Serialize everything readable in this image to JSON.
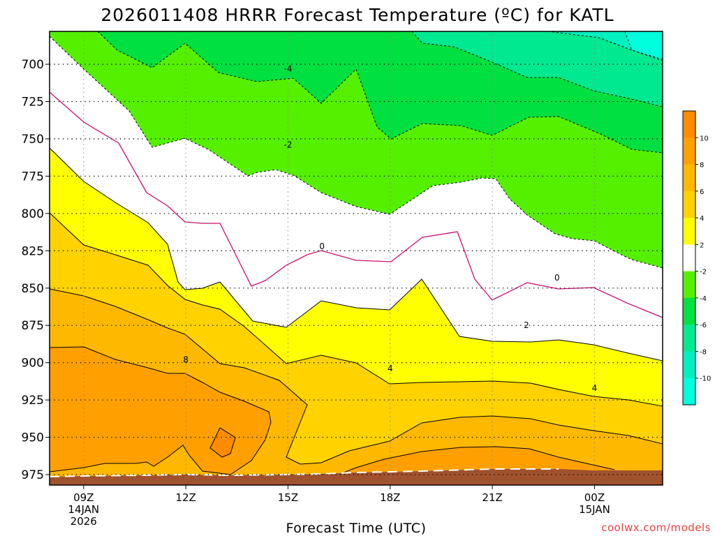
{
  "chart_data": {
    "type": "contour",
    "title": "2026011408 HRRR Forecast Temperature (ºC) for KATL",
    "xlabel": "Forecast Time (UTC)",
    "ylabel": "",
    "credit": "coolwx.com/models",
    "x_ticks": [
      {
        "hour": 9,
        "lines": [
          "09Z",
          "14JAN",
          "2026"
        ]
      },
      {
        "hour": 12,
        "lines": [
          "12Z"
        ]
      },
      {
        "hour": 15,
        "lines": [
          "15Z"
        ]
      },
      {
        "hour": 18,
        "lines": [
          "18Z"
        ]
      },
      {
        "hour": 21,
        "lines": [
          "21Z"
        ]
      },
      {
        "hour": 24,
        "lines": [
          "00Z",
          "15JAN"
        ]
      }
    ],
    "x_range_hours": [
      8,
      26
    ],
    "y_ticks": [
      700,
      725,
      750,
      775,
      800,
      825,
      850,
      875,
      900,
      925,
      950,
      975
    ],
    "y_range_hPa": [
      678,
      982
    ],
    "colorbar": {
      "ticks": [
        "10",
        "8",
        "6",
        "4",
        "2",
        "-2",
        "-4",
        "-6",
        "-8",
        "-10"
      ],
      "levels": [
        {
          "range": "10 to 12",
          "color": "#ff8c00"
        },
        {
          "range": "8 to 10",
          "color": "#ffa000"
        },
        {
          "range": "6 to 8",
          "color": "#ffb800"
        },
        {
          "range": "4 to 6",
          "color": "#ffd200"
        },
        {
          "range": "2 to 4",
          "color": "#ffff00"
        },
        {
          "range": "-2 to 2",
          "color": "#ffffff"
        },
        {
          "range": "-4 to -2",
          "color": "#55f000"
        },
        {
          "range": "-6 to -4",
          "color": "#00e040"
        },
        {
          "range": "-8 to -6",
          "color": "#00e990"
        },
        {
          "range": "-10 to -8",
          "color": "#00f0c0"
        },
        {
          "range": "-12 to -10",
          "color": "#00ffdd"
        }
      ]
    },
    "fills": [
      {
        "name": "fill-cold-2-4",
        "color": "#55f000"
      },
      {
        "name": "fill-cold-4-6",
        "color": "#00e040"
      },
      {
        "name": "fill-cold-6-8",
        "color": "#00e990"
      },
      {
        "name": "fill-cold-8-10",
        "color": "#00f0c0"
      },
      {
        "name": "fill-cold-10-12",
        "color": "#00ffdd"
      },
      {
        "name": "fill-warm-2-4",
        "color": "#ffff00"
      },
      {
        "name": "fill-warm-4-6",
        "color": "#ffd200"
      },
      {
        "name": "fill-warm-6-8",
        "color": "#ffb800"
      },
      {
        "name": "fill-warm-8-10",
        "color": "#ffa000"
      },
      {
        "name": "fill-warm-10-12",
        "color": "#ff8c00"
      }
    ],
    "contour_labels": [
      {
        "text": "-4",
        "hour": 15.0,
        "hPa": 703
      },
      {
        "text": "-2",
        "hour": 15.0,
        "hPa": 754
      },
      {
        "text": "0",
        "hour": 16.0,
        "hPa": 822
      },
      {
        "text": "0",
        "hour": 22.9,
        "hPa": 843
      },
      {
        "text": "2",
        "hour": 22.0,
        "hPa": 875
      },
      {
        "text": "4",
        "hour": 18.0,
        "hPa": 904
      },
      {
        "text": "4",
        "hour": 24.0,
        "hPa": 917
      },
      {
        "text": "8",
        "hour": 12.0,
        "hPa": 898
      }
    ],
    "ground_color": "#a0522d"
  }
}
